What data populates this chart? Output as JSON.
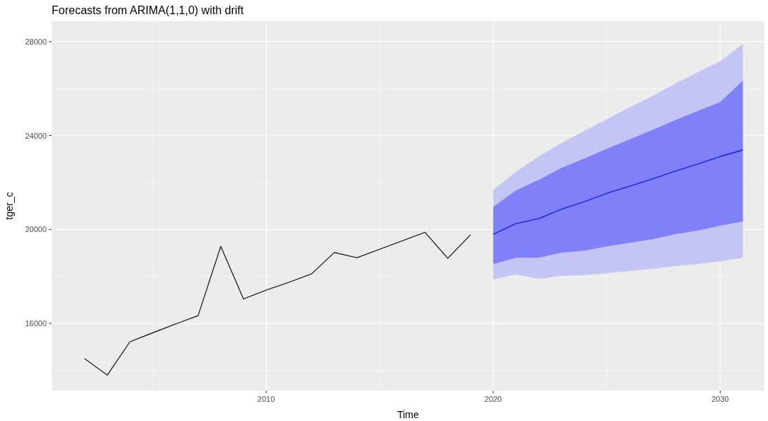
{
  "chart_data": {
    "type": "line",
    "title": "Forecasts from ARIMA(1,1,0) with drift",
    "xlabel": "Time",
    "ylabel": "tger_c",
    "xlim": [
      2000.55,
      2031.95
    ],
    "xticks": [
      2010,
      2020,
      2030
    ],
    "ylim": [
      13140,
      28870
    ],
    "yticks": [
      16000,
      20000,
      24000,
      28000
    ],
    "grid": true,
    "series": [
      {
        "color": "#c5c5f5",
        "x": [
          2020,
          2021,
          2022,
          2023,
          2024,
          2025,
          2026,
          2027,
          2028,
          2029,
          2030,
          2031
        ],
        "values": [
          null,
          null,
          null,
          null,
          null,
          null,
          null,
          null,
          null,
          null,
          null,
          null
        ],
        "lower": [
          17870,
          18080,
          17900,
          18020,
          18050,
          18140,
          18230,
          18320,
          18440,
          18530,
          18650,
          18800
        ],
        "upper": [
          21690,
          22450,
          23110,
          23680,
          24190,
          24700,
          25190,
          25670,
          26210,
          26690,
          27170,
          27900
        ]
      },
      {
        "color": "#0000ff",
        "x": [
          2020,
          2021,
          2022,
          2023,
          2024,
          2025,
          2026,
          2027,
          2028,
          2029,
          2030,
          2031
        ],
        "values": [
          19790,
          20250,
          20460,
          20860,
          21180,
          21540,
          21840,
          22150,
          22480,
          22780,
          23110,
          23390
        ],
        "lower": [
          18530,
          18800,
          18800,
          19010,
          19100,
          19280,
          19430,
          19580,
          19800,
          19950,
          20160,
          20340
        ],
        "upper": [
          20970,
          21660,
          22110,
          22620,
          23020,
          23440,
          23830,
          24230,
          24650,
          25040,
          25430,
          26340
        ]
      },
      {
        "color": "#000000",
        "x": [
          2002,
          2003,
          2004,
          2005,
          2006,
          2007,
          2008,
          2009,
          2010,
          2011,
          2012,
          2013,
          2014,
          2015,
          2016,
          2017,
          2018,
          2019
        ],
        "values": [
          14500,
          13800,
          15220,
          15600,
          15970,
          16330,
          19280,
          17040,
          17420,
          17750,
          18110,
          19020,
          18800,
          19160,
          19520,
          19880,
          18770,
          19770
        ]
      }
    ]
  }
}
